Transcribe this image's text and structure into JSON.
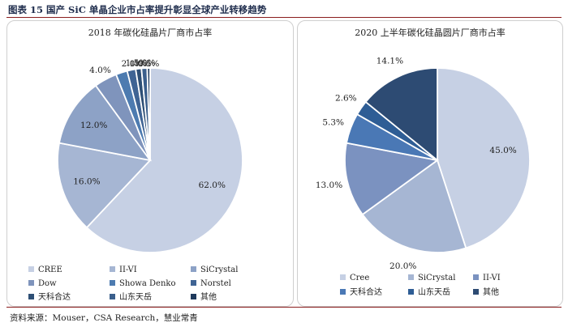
{
  "header": {
    "figure_title": "图表 15 国产 SiC 单晶企业市占率提升彰显全球产业转移趋势"
  },
  "footer": {
    "source": "资料来源：Mouser，CSA Research，慧业常青"
  },
  "chart_data": [
    {
      "type": "pie",
      "title": "2018 年碳化硅晶片厂商市占率",
      "series": [
        {
          "name": "CREE",
          "value": 62.0,
          "label": "62.0%",
          "color": "#c6d0e4"
        },
        {
          "name": "II-VI",
          "value": 16.0,
          "label": "16.0%",
          "color": "#a6b6d3"
        },
        {
          "name": "SiCrystal",
          "value": 12.0,
          "label": "12.0%",
          "color": "#8da2c6"
        },
        {
          "name": "Dow",
          "value": 4.0,
          "label": "4.0%",
          "color": "#7f94bc"
        },
        {
          "name": "Showa Denko",
          "value": 2.0,
          "label": "2.0%",
          "color": "#4d7bb0"
        },
        {
          "name": "Norstel",
          "value": 1.5,
          "label": "1.5%",
          "color": "#3f6494"
        },
        {
          "name": "天科合达",
          "value": 1.0,
          "label": "1.0%",
          "color": "#2e4f75"
        },
        {
          "name": "山东天岳",
          "value": 1.0,
          "label": "1.0%",
          "color": "#3b5f8c"
        },
        {
          "name": "其他",
          "value": 0.5,
          "label": "0.5%",
          "color": "#1f3a5c"
        }
      ],
      "legend_position": "bottom"
    },
    {
      "type": "pie",
      "title": "2020 上半年碳化硅晶圆片厂商市占率",
      "series": [
        {
          "name": "Cree",
          "value": 45.0,
          "label": "45.0%",
          "color": "#c6d0e4"
        },
        {
          "name": "SiCrystal",
          "value": 20.0,
          "label": "20.0%",
          "color": "#a6b6d3"
        },
        {
          "name": "II-VI",
          "value": 13.0,
          "label": "13.0%",
          "color": "#7b92c0"
        },
        {
          "name": "天科合达",
          "value": 5.3,
          "label": "5.3%",
          "color": "#4a78b5"
        },
        {
          "name": "山东天岳",
          "value": 2.6,
          "label": "2.6%",
          "color": "#2e5d95"
        },
        {
          "name": "其他",
          "value": 14.1,
          "label": "14.1%",
          "color": "#2d4b73"
        }
      ],
      "legend_position": "bottom"
    }
  ]
}
